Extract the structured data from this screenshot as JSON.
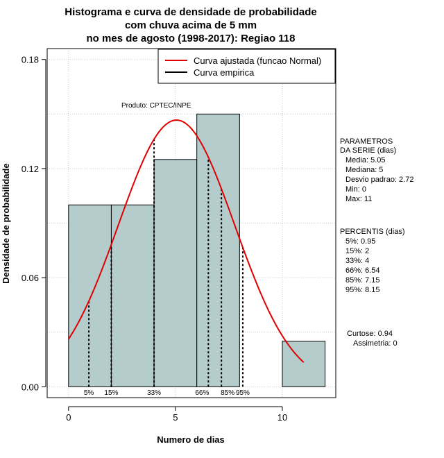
{
  "chart_data": {
    "type": "bar",
    "title_lines": [
      "Histograma e curva de densidade de probabilidade",
      "com chuva acima de 5 mm",
      "no mes de agosto (1998-2017): Regiao 118"
    ],
    "xlabel": "Numero de dias",
    "ylabel": "Densidade de probabilidade",
    "xlim": [
      -1,
      12.5
    ],
    "ylim": [
      -0.006,
      0.186
    ],
    "x_ticks": [
      0,
      5,
      10
    ],
    "y_ticks": [
      0.0,
      0.06,
      0.12,
      0.18
    ],
    "y_tick_labels": [
      "0.00",
      "0.06",
      "0.12",
      "0.18"
    ],
    "bins": [
      {
        "x0": 0,
        "x1": 2,
        "density": 0.1
      },
      {
        "x0": 2,
        "x1": 4,
        "density": 0.1
      },
      {
        "x0": 4,
        "x1": 6,
        "density": 0.125
      },
      {
        "x0": 6,
        "x1": 8,
        "density": 0.15
      },
      {
        "x0": 8,
        "x1": 10,
        "density": 0.0
      },
      {
        "x0": 10,
        "x1": 12,
        "density": 0.025
      }
    ],
    "normal_fit": {
      "mean": 5.05,
      "sd": 2.72,
      "x_range": [
        0,
        11
      ]
    },
    "percentile_lines": [
      {
        "label": "5%",
        "value": 0.95
      },
      {
        "label": "15%",
        "value": 2
      },
      {
        "label": "33%",
        "value": 4
      },
      {
        "label": "66%",
        "value": 6.54
      },
      {
        "label": "85%",
        "value": 7.15
      },
      {
        "label": "95%",
        "value": 8.15
      }
    ],
    "legend": [
      {
        "label": "Curva ajustada (funcao Normal)",
        "color": "#e00000"
      },
      {
        "label": "Curva empirica",
        "color": "#000000"
      }
    ],
    "annotation": "Produto: CPTEC/INPE",
    "grid": true,
    "bar_color": "#b5cccc",
    "curve_color": "#e00000"
  },
  "side_panel": {
    "params_title": [
      "PARAMETROS",
      "DA SERIE (dias)"
    ],
    "params": [
      "Media: 5.05",
      "Mediana: 5",
      "Desvio padrao: 2.72",
      "Min: 0",
      "Max: 11"
    ],
    "percentis_title": "PERCENTIS (dias)",
    "percentis": [
      "5%: 0.95",
      "15%: 2",
      "33%: 4",
      "66%: 6.54",
      "85%: 7.15",
      "95%: 8.15"
    ],
    "curtose": "Curtose: 0.94",
    "assimetria": "Assimetria: 0"
  }
}
